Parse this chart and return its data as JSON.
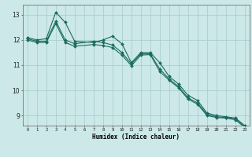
{
  "title": "",
  "xlabel": "Humidex (Indice chaleur)",
  "bg_color": "#cce8e8",
  "grid_color": "#aacfcf",
  "line_color": "#1a6b5e",
  "x_ticks": [
    0,
    1,
    2,
    3,
    4,
    5,
    6,
    7,
    8,
    9,
    10,
    11,
    12,
    13,
    14,
    15,
    16,
    17,
    18,
    19,
    20,
    21,
    22,
    23
  ],
  "y_ticks": [
    9,
    10,
    11,
    12,
    13
  ],
  "ylim": [
    8.6,
    13.4
  ],
  "xlim": [
    -0.5,
    23.5
  ],
  "series1_x": [
    0,
    1,
    2,
    3,
    4,
    5,
    7,
    8,
    9,
    10,
    11,
    12,
    13,
    14,
    15,
    16,
    17,
    18,
    19,
    20,
    21,
    22,
    23
  ],
  "series1_y": [
    12.1,
    12.0,
    12.05,
    13.1,
    12.7,
    11.95,
    11.9,
    12.0,
    12.15,
    11.85,
    11.1,
    11.5,
    11.5,
    11.1,
    10.55,
    10.25,
    9.8,
    9.6,
    9.1,
    9.0,
    8.95,
    8.9,
    8.6
  ],
  "series2_x": [
    0,
    1,
    2,
    3,
    4,
    5,
    7,
    8,
    9,
    10,
    11,
    12,
    13,
    14,
    15,
    16,
    17,
    18,
    19,
    20,
    21,
    22,
    23
  ],
  "series2_y": [
    12.05,
    11.95,
    11.95,
    12.75,
    12.0,
    11.85,
    11.95,
    11.9,
    11.8,
    11.5,
    11.05,
    11.45,
    11.45,
    10.85,
    10.45,
    10.15,
    9.7,
    9.5,
    9.05,
    8.95,
    8.92,
    8.88,
    8.58
  ],
  "series3_x": [
    0,
    1,
    2,
    3,
    4,
    5,
    7,
    8,
    9,
    10,
    11,
    12,
    13,
    14,
    15,
    16,
    17,
    18,
    19,
    20,
    21,
    22,
    23
  ],
  "series3_y": [
    12.0,
    11.9,
    11.9,
    12.65,
    11.9,
    11.75,
    11.82,
    11.78,
    11.7,
    11.4,
    10.98,
    11.4,
    11.42,
    10.75,
    10.4,
    10.1,
    9.65,
    9.45,
    9.0,
    8.92,
    8.9,
    8.83,
    8.53
  ]
}
